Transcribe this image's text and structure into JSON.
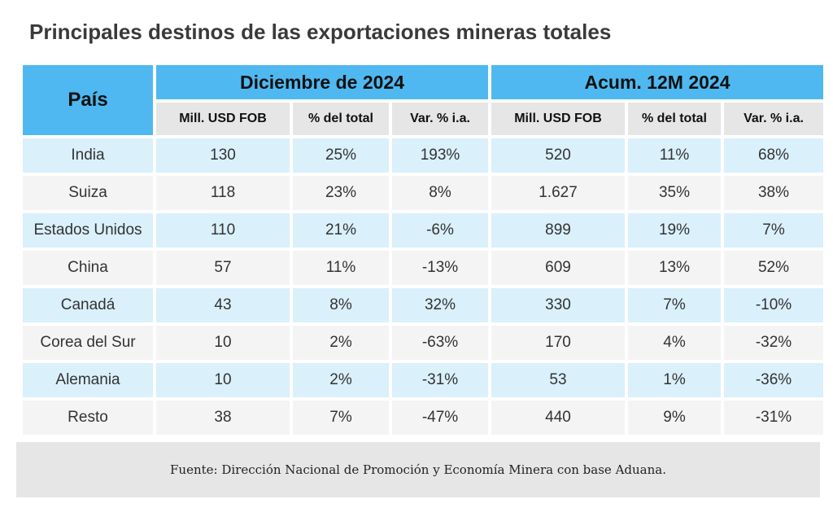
{
  "title": "Principales destinos de las exportaciones mineras totales",
  "header": {
    "pais": "País",
    "group1": "Diciembre de 2024",
    "group2": "Acum. 12M 2024",
    "sub": [
      "Mill. USD FOB",
      "% del total",
      "Var. % i.a.",
      "Mill. USD FOB",
      "% del total",
      "Var. % i.a."
    ]
  },
  "rows": [
    {
      "pais": "India",
      "dic_mill": "130",
      "dic_pct": "25%",
      "dic_var": "193%",
      "acum_mill": "520",
      "acum_pct": "11%",
      "acum_var": "68%"
    },
    {
      "pais": "Suiza",
      "dic_mill": "118",
      "dic_pct": "23%",
      "dic_var": "8%",
      "acum_mill": "1.627",
      "acum_pct": "35%",
      "acum_var": "38%"
    },
    {
      "pais": "Estados Unidos",
      "dic_mill": "110",
      "dic_pct": "21%",
      "dic_var": "-6%",
      "acum_mill": "899",
      "acum_pct": "19%",
      "acum_var": "7%"
    },
    {
      "pais": "China",
      "dic_mill": "57",
      "dic_pct": "11%",
      "dic_var": "-13%",
      "acum_mill": "609",
      "acum_pct": "13%",
      "acum_var": "52%"
    },
    {
      "pais": "Canadá",
      "dic_mill": "43",
      "dic_pct": "8%",
      "dic_var": "32%",
      "acum_mill": "330",
      "acum_pct": "7%",
      "acum_var": "-10%"
    },
    {
      "pais": "Corea del Sur",
      "dic_mill": "10",
      "dic_pct": "2%",
      "dic_var": "-63%",
      "acum_mill": "170",
      "acum_pct": "4%",
      "acum_var": "-32%"
    },
    {
      "pais": "Alemania",
      "dic_mill": "10",
      "dic_pct": "2%",
      "dic_var": "-31%",
      "acum_mill": "53",
      "acum_pct": "1%",
      "acum_var": "-36%"
    },
    {
      "pais": "Resto",
      "dic_mill": "38",
      "dic_pct": "7%",
      "dic_var": "-47%",
      "acum_mill": "440",
      "acum_pct": "9%",
      "acum_var": "-31%"
    }
  ],
  "footer": "Fuente: Dirección Nacional de Promoción y Economía Minera con base Aduana.",
  "colors": {
    "header_blue": "#4fb8f0",
    "subheader_gray": "#e6e6e6",
    "row_blue": "#daf0fb",
    "row_gray": "#f4f4f4"
  }
}
